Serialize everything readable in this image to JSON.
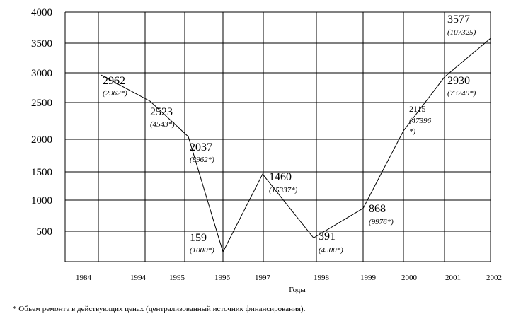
{
  "chart_data": {
    "type": "line",
    "x": [
      "1984",
      "1994",
      "1995",
      "1996",
      "1997",
      "1998",
      "1999",
      "2000",
      "2001",
      "2002"
    ],
    "series": [
      {
        "values": [
          2962,
          2523,
          2037,
          159,
          1460,
          391,
          868,
          2115,
          2930,
          3577
        ]
      }
    ],
    "value_labels": [
      "2962",
      "2523",
      "2037",
      "159",
      "1460",
      "391",
      "868",
      "2115",
      "2930",
      "3577"
    ],
    "secondary_labels": [
      "(2962*)",
      "(4543*)",
      "(8962*)",
      "(1000*)",
      "(15337*)",
      "(4500*)",
      "(9976*)",
      "(47396 *)",
      "(73249*)",
      "(107325)"
    ],
    "yticks": [
      "500",
      "1000",
      "1500",
      "2000",
      "2500",
      "3000",
      "3500",
      "4000"
    ],
    "ylim": [
      0,
      4000
    ],
    "xlabel": "Годы",
    "ylabel": "",
    "title": "",
    "grid": true
  },
  "footnote": "* Объем ремонта в действующих ценах (централизованный источник финансирования)."
}
